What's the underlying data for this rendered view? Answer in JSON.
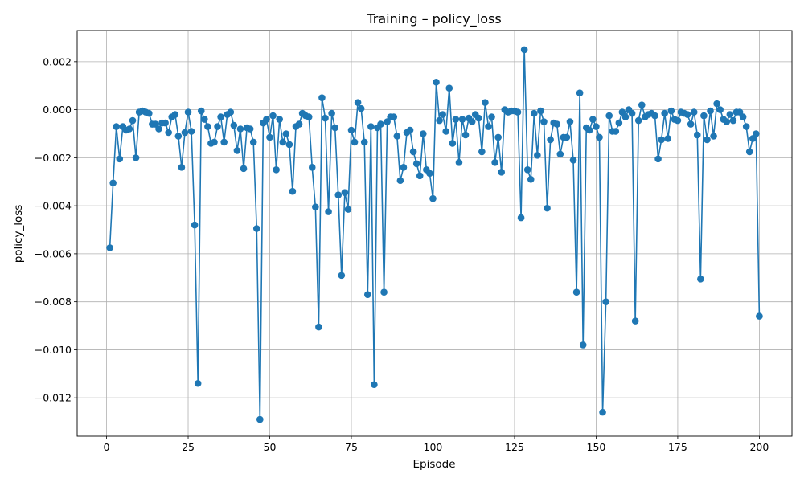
{
  "chart_data": {
    "type": "line",
    "title": "Training – policy_loss",
    "xlabel": "Episode",
    "ylabel": "policy_loss",
    "xlim": [
      -9,
      210
    ],
    "ylim": [
      -0.0136,
      0.0033
    ],
    "xticks": [
      0,
      25,
      50,
      75,
      100,
      125,
      150,
      175,
      200
    ],
    "yticks": [
      -0.012,
      -0.01,
      -0.008,
      -0.006,
      -0.004,
      -0.002,
      0.0,
      0.002
    ],
    "ytick_labels": [
      "−0.012",
      "−0.010",
      "−0.008",
      "−0.006",
      "−0.004",
      "−0.002",
      "0.000",
      "0.002"
    ],
    "grid": true,
    "marker": "circle",
    "color": "#1f77b4",
    "series": [
      {
        "x": [
          1,
          2,
          3,
          4,
          5,
          6,
          7,
          8,
          9,
          10,
          11,
          12,
          13,
          14,
          15,
          16,
          17,
          18,
          19,
          20,
          21,
          22,
          23,
          24,
          25,
          26,
          27,
          28,
          29,
          30,
          31,
          32,
          33,
          34,
          35,
          36,
          37,
          38,
          39,
          40,
          41,
          42,
          43,
          44,
          45,
          46,
          47,
          48,
          49,
          50,
          51,
          52,
          53,
          54,
          55,
          56,
          57,
          58,
          59,
          60,
          61,
          62,
          63,
          64,
          65,
          66,
          67,
          68,
          69,
          70,
          71,
          72,
          73,
          74,
          75,
          76,
          77,
          78,
          79,
          80,
          81,
          82,
          83,
          84,
          85,
          86,
          87,
          88,
          89,
          90,
          91,
          92,
          93,
          94,
          95,
          96,
          97,
          98,
          99,
          100,
          101,
          102,
          103,
          104,
          105,
          106,
          107,
          108,
          109,
          110,
          111,
          112,
          113,
          114,
          115,
          116,
          117,
          118,
          119,
          120,
          121,
          122,
          123,
          124,
          125,
          126,
          127,
          128,
          129,
          130,
          131,
          132,
          133,
          134,
          135,
          136,
          137,
          138,
          139,
          140,
          141,
          142,
          143,
          144,
          145,
          146,
          147,
          148,
          149,
          150,
          151,
          152,
          153,
          154,
          155,
          156,
          157,
          158,
          159,
          160,
          161,
          162,
          163,
          164,
          165,
          166,
          167,
          168,
          169,
          170,
          171,
          172,
          173,
          174,
          175,
          176,
          177,
          178,
          179,
          180,
          181,
          182,
          183,
          184,
          185,
          186,
          187,
          188,
          189,
          190,
          191,
          192,
          193,
          194,
          195,
          196,
          197,
          198,
          199,
          200
        ],
        "y": [
          -0.00575,
          -0.00305,
          -0.0007,
          -0.00205,
          -0.0007,
          -0.00085,
          -0.0008,
          -0.00045,
          -0.002,
          -0.0001,
          -5e-05,
          -0.0001,
          -0.00015,
          -0.0006,
          -0.0006,
          -0.0008,
          -0.00055,
          -0.00055,
          -0.00095,
          -0.0003,
          -0.0002,
          -0.0011,
          -0.0024,
          -0.00095,
          -0.0001,
          -0.0009,
          -0.0048,
          -0.0114,
          -5e-05,
          -0.0004,
          -0.0007,
          -0.0014,
          -0.00135,
          -0.0007,
          -0.0003,
          -0.00135,
          -0.0002,
          -0.0001,
          -0.00065,
          -0.0017,
          -0.0008,
          -0.00245,
          -0.00075,
          -0.0008,
          -0.00135,
          -0.00495,
          -0.0129,
          -0.00055,
          -0.0004,
          -0.00115,
          -0.00025,
          -0.0025,
          -0.0004,
          -0.00135,
          -0.001,
          -0.00145,
          -0.0034,
          -0.0007,
          -0.0006,
          -0.00015,
          -0.00025,
          -0.0003,
          -0.0024,
          -0.00405,
          -0.00905,
          0.0005,
          -0.00035,
          -0.00425,
          -0.00015,
          -0.00075,
          -0.00355,
          -0.0069,
          -0.00345,
          -0.00415,
          -0.00085,
          -0.00135,
          0.0003,
          5e-05,
          -0.00135,
          -0.0077,
          -0.0007,
          -0.01145,
          -0.00075,
          -0.0006,
          -0.0076,
          -0.0005,
          -0.0003,
          -0.0003,
          -0.0011,
          -0.00295,
          -0.0024,
          -0.00095,
          -0.00085,
          -0.00175,
          -0.00225,
          -0.00275,
          -0.001,
          -0.0025,
          -0.00265,
          -0.0037,
          0.00115,
          -0.00045,
          -0.0002,
          -0.0009,
          0.0009,
          -0.0014,
          -0.0004,
          -0.0022,
          -0.0004,
          -0.00105,
          -0.00035,
          -0.0005,
          -0.0002,
          -0.00035,
          -0.00175,
          0.0003,
          -0.0007,
          -0.0003,
          -0.0022,
          -0.00115,
          -0.0026,
          0.0,
          -0.0001,
          -5e-05,
          -5e-05,
          -0.0001,
          -0.0045,
          0.0025,
          -0.0025,
          -0.0029,
          -0.00015,
          -0.0019,
          -5e-05,
          -0.0005,
          -0.0041,
          -0.00125,
          -0.00055,
          -0.0006,
          -0.00185,
          -0.00115,
          -0.00115,
          -0.0005,
          -0.0021,
          -0.0076,
          0.0007,
          -0.0098,
          -0.00075,
          -0.00085,
          -0.0004,
          -0.0007,
          -0.00115,
          -0.0126,
          -0.008,
          -0.00025,
          -0.0009,
          -0.0009,
          -0.00055,
          -0.0001,
          -0.0003,
          0.0,
          -0.00015,
          -0.0088,
          -0.00045,
          0.0002,
          -0.0003,
          -0.0002,
          -0.00015,
          -0.00025,
          -0.00205,
          -0.00125,
          -0.00015,
          -0.0012,
          -5e-05,
          -0.0004,
          -0.00045,
          -0.0001,
          -0.00015,
          -0.0002,
          -0.0006,
          -0.0001,
          -0.00105,
          -0.00705,
          -0.00025,
          -0.00125,
          -5e-05,
          -0.0011,
          0.00025,
          0.0,
          -0.0004,
          -0.0005,
          -0.0002,
          -0.00045,
          -0.0001,
          -0.0001,
          -0.0003,
          -0.0007,
          -0.00175,
          -0.0012,
          -0.001,
          -0.0086
        ]
      }
    ]
  }
}
